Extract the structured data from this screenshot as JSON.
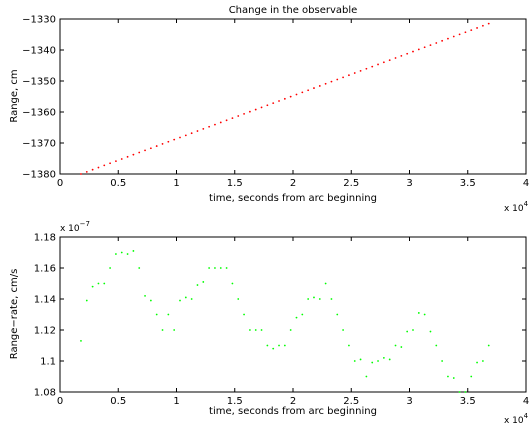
{
  "chart_data": [
    {
      "type": "scatter",
      "title": "Change in the observable",
      "xlabel": "time, seconds from arc beginning",
      "ylabel": "Range, cm",
      "x_exponent_label": "x 10",
      "x_exponent_power": "4",
      "xlim": [
        0,
        40000
      ],
      "ylim": [
        -1380,
        -1330
      ],
      "xticks": [
        0,
        5000,
        10000,
        15000,
        20000,
        25000,
        30000,
        35000,
        40000
      ],
      "xtick_labels": [
        "0",
        "0.5",
        "1",
        "1.5",
        "2",
        "2.5",
        "3",
        "3.5",
        "4"
      ],
      "yticks": [
        -1380,
        -1370,
        -1360,
        -1350,
        -1340,
        -1330
      ],
      "ytick_labels": [
        "−1380",
        "−1370",
        "−1360",
        "−1350",
        "−1340",
        "−1330"
      ],
      "grid": false,
      "color": "#ff0000",
      "series": [
        {
          "x_start": 1800,
          "x_end": 36800,
          "x_step": 500,
          "y_start": -1380,
          "y_end": -1331.5
        }
      ]
    },
    {
      "type": "scatter",
      "title": "",
      "xlabel": "time, seconds from arc beginning",
      "ylabel": "Range−rate, cm/s",
      "x_exponent_label": "x 10",
      "x_exponent_power": "4",
      "y_exponent_label": "x 10",
      "y_exponent_power": "−7",
      "xlim": [
        0,
        40000
      ],
      "ylim": [
        1.08,
        1.18
      ],
      "xticks": [
        0,
        5000,
        10000,
        15000,
        20000,
        25000,
        30000,
        35000,
        40000
      ],
      "xtick_labels": [
        "0",
        "0.5",
        "1",
        "1.5",
        "2",
        "2.5",
        "3",
        "3.5",
        "4"
      ],
      "yticks": [
        1.08,
        1.1,
        1.12,
        1.14,
        1.16,
        1.18
      ],
      "ytick_labels": [
        "1.08",
        "1.1",
        "1.12",
        "1.14",
        "1.16",
        "1.18"
      ],
      "grid": false,
      "color": "#00ff00",
      "series": [
        {
          "x": [
            1800,
            2300,
            2800,
            3300,
            3800,
            4300,
            4800,
            5300,
            5800,
            6300,
            6800,
            7300,
            7800,
            8300,
            8800,
            9300,
            9800,
            10300,
            10800,
            11300,
            11800,
            12300,
            12800,
            13300,
            13800,
            14300,
            14800,
            15300,
            15800,
            16300,
            16800,
            17300,
            17800,
            18300,
            18800,
            19300,
            19800,
            20300,
            20800,
            21300,
            21800,
            22300,
            22800,
            23300,
            23800,
            24300,
            24800,
            25300,
            25800,
            26300,
            26800,
            27300,
            27800,
            28300,
            28800,
            29300,
            29800,
            30300,
            30800,
            31300,
            31800,
            32300,
            32800,
            33300,
            33800,
            34300,
            34800,
            35300,
            35800,
            36300,
            36800
          ],
          "y": [
            1.113,
            1.139,
            1.148,
            1.15,
            1.15,
            1.16,
            1.169,
            1.17,
            1.169,
            1.171,
            1.16,
            1.142,
            1.139,
            1.13,
            1.12,
            1.13,
            1.12,
            1.139,
            1.141,
            1.14,
            1.149,
            1.151,
            1.16,
            1.16,
            1.16,
            1.16,
            1.15,
            1.14,
            1.13,
            1.12,
            1.12,
            1.12,
            1.11,
            1.108,
            1.11,
            1.11,
            1.12,
            1.128,
            1.13,
            1.14,
            1.141,
            1.14,
            1.15,
            1.14,
            1.13,
            1.12,
            1.11,
            1.1,
            1.101,
            1.09,
            1.099,
            1.1,
            1.102,
            1.101,
            1.11,
            1.109,
            1.119,
            1.12,
            1.131,
            1.13,
            1.119,
            1.11,
            1.1,
            1.09,
            1.089,
            1.08,
            1.08,
            1.09,
            1.099,
            1.1,
            1.11
          ]
        }
      ]
    }
  ]
}
